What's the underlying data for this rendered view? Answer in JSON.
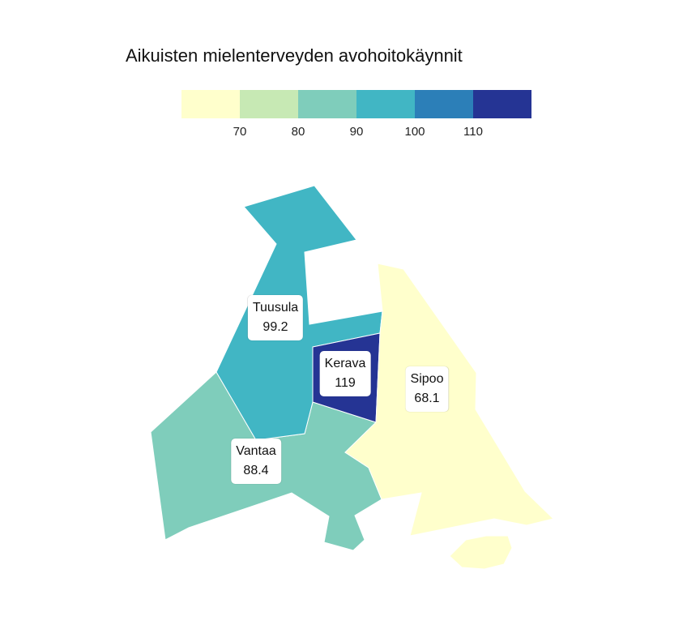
{
  "title": "Aikuisten mielenterveyden avohoitokäynnit",
  "legend": {
    "colors": [
      "#ffffcc",
      "#c7e9b4",
      "#7fcdbb",
      "#41b6c4",
      "#2c7fb8",
      "#253494"
    ],
    "ticks": [
      "70",
      "80",
      "90",
      "100",
      "110"
    ]
  },
  "regions": [
    {
      "name": "Tuusula",
      "value": "99.2",
      "color": "#41b6c4"
    },
    {
      "name": "Kerava",
      "value": "119",
      "color": "#253494"
    },
    {
      "name": "Sipoo",
      "value": "68.1",
      "color": "#ffffcc"
    },
    {
      "name": "Vantaa",
      "value": "88.4",
      "color": "#7fcdbb"
    }
  ]
}
